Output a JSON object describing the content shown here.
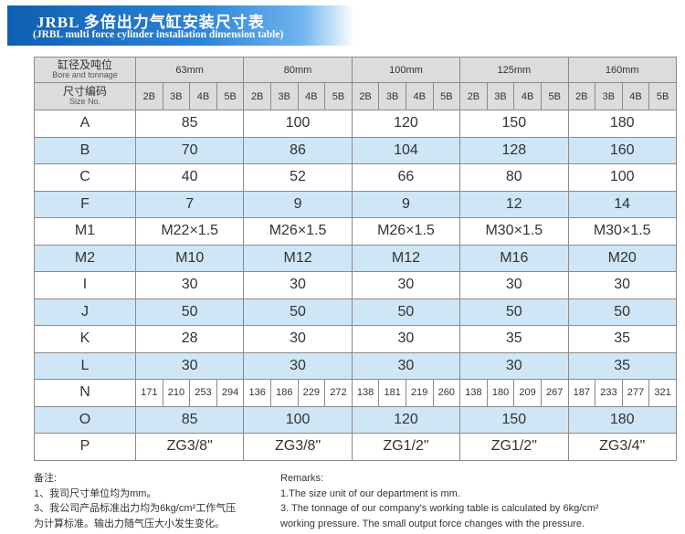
{
  "header": {
    "title": "JRBL 多倍出力气缸安装尺寸表",
    "subtitle": "(JRBL multi force cylinder installation dimension table)"
  },
  "table": {
    "corner_top": {
      "cn": "缸径及吨位",
      "en": "Bore and tonnage"
    },
    "corner_bottom": {
      "cn": "尺寸编码",
      "en": "Size No."
    },
    "groups": [
      {
        "bore": "63mm",
        "sizes": [
          "2B",
          "3B",
          "4B",
          "5B"
        ]
      },
      {
        "bore": "80mm",
        "sizes": [
          "2B",
          "3B",
          "4B",
          "5B"
        ]
      },
      {
        "bore": "100mm",
        "sizes": [
          "2B",
          "3B",
          "4B",
          "5B"
        ]
      },
      {
        "bore": "125mm",
        "sizes": [
          "2B",
          "3B",
          "4B",
          "5B"
        ]
      },
      {
        "bore": "160mm",
        "sizes": [
          "2B",
          "3B",
          "4B",
          "5B"
        ]
      }
    ],
    "rows": [
      {
        "label": "A",
        "values": [
          85,
          100,
          120,
          150,
          180
        ]
      },
      {
        "label": "B",
        "values": [
          70,
          86,
          104,
          128,
          160
        ]
      },
      {
        "label": "C",
        "values": [
          40,
          52,
          66,
          80,
          100
        ]
      },
      {
        "label": "F",
        "values": [
          7,
          9,
          9,
          12,
          14
        ]
      },
      {
        "label": "M1",
        "values": [
          "M22×1.5",
          "M26×1.5",
          "M26×1.5",
          "M30×1.5",
          "M30×1.5"
        ]
      },
      {
        "label": "M2",
        "values": [
          "M10",
          "M12",
          "M12",
          "M16",
          "M20"
        ]
      },
      {
        "label": "I",
        "values": [
          30,
          30,
          30,
          30,
          30
        ]
      },
      {
        "label": "J",
        "values": [
          50,
          50,
          50,
          50,
          50
        ]
      },
      {
        "label": "K",
        "values": [
          28,
          30,
          30,
          35,
          35
        ]
      },
      {
        "label": "L",
        "values": [
          30,
          30,
          30,
          30,
          35
        ]
      },
      {
        "label": "N",
        "values": [
          [
            171,
            210,
            253,
            294
          ],
          [
            136,
            186,
            229,
            272
          ],
          [
            138,
            181,
            219,
            260
          ],
          [
            138,
            180,
            209,
            267
          ],
          [
            187,
            233,
            277,
            321
          ]
        ]
      },
      {
        "label": "O",
        "values": [
          85,
          100,
          120,
          150,
          180
        ]
      },
      {
        "label": "P",
        "values": [
          "ZG3/8\"",
          "ZG3/8\"",
          "ZG1/2\"",
          "ZG1/2\"",
          "ZG3/4\""
        ]
      }
    ]
  },
  "remarks_cn": {
    "title": "备注:",
    "lines": [
      "1、我司尺寸单位均为mm。",
      "3、我公司产品标准出力均为6kg/cm²工作气压",
      "为计算标准。输出力随气压大小发生变化。"
    ]
  },
  "remarks_en": {
    "title": "Remarks:",
    "lines": [
      "1.The size unit of our department is mm.",
      "3. The tonnage of our company's working table is calculated by 6kg/cm²",
      "working pressure. The small output force changes with the pressure."
    ]
  }
}
